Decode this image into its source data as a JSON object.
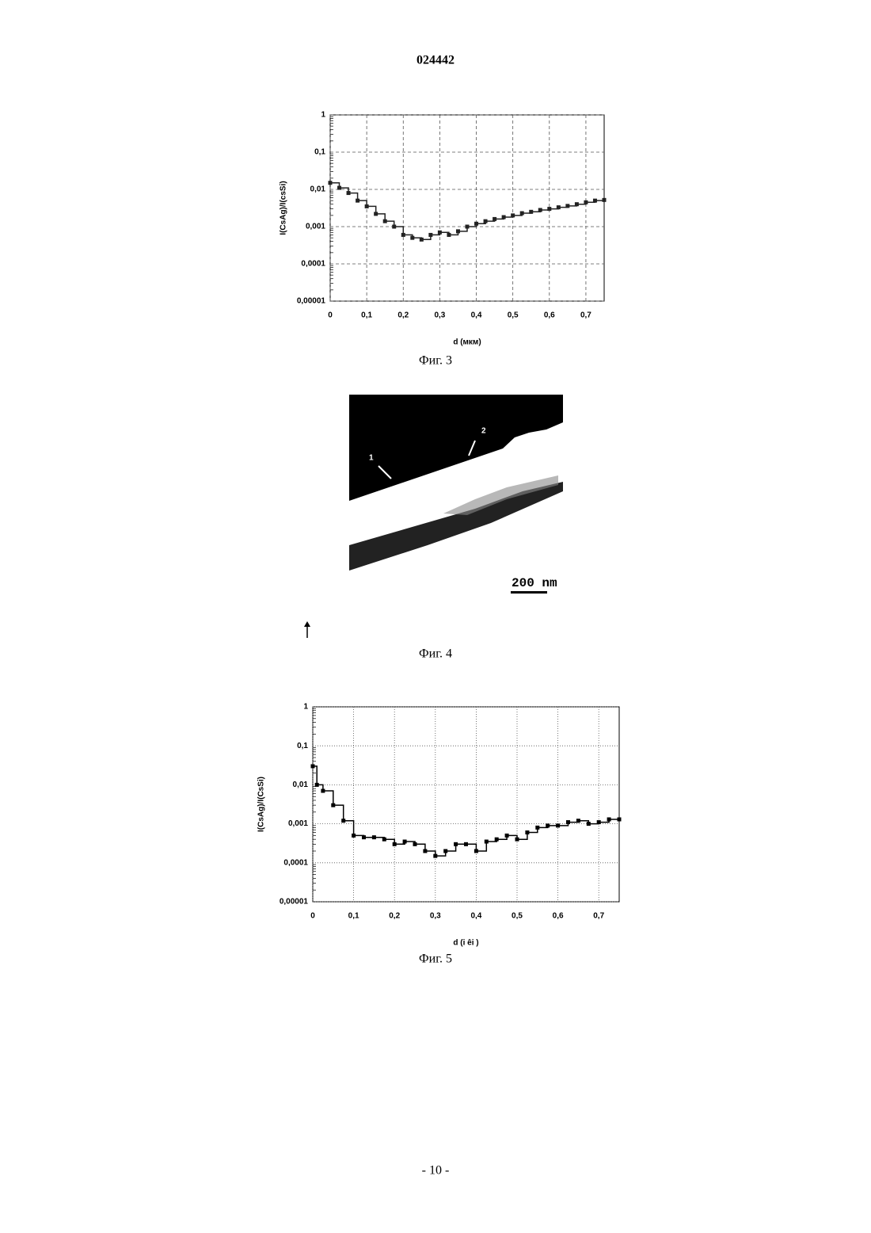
{
  "header": {
    "title": "024442"
  },
  "chart_data": [
    {
      "type": "line",
      "caption": "Фиг. 3",
      "x_label": "d (мкм)",
      "y_label": "I(CsAg)/I(csSi)",
      "log_y": true,
      "grid": true,
      "grid_dash": "4 3",
      "color": "#222222",
      "xlim": [
        0,
        0.75
      ],
      "ylim": [
        1e-05,
        1
      ],
      "xticks": [
        0,
        {
          "value": 0.1,
          "label": "0,1"
        },
        {
          "value": 0.2,
          "label": "0,2"
        },
        {
          "value": 0.3,
          "label": "0,3"
        },
        {
          "value": 0.4,
          "label": "0,4"
        },
        {
          "value": 0.5,
          "label": "0,5"
        },
        {
          "value": 0.6,
          "label": "0,6"
        },
        {
          "value": 0.7,
          "label": "0,7"
        }
      ],
      "yticks": [
        {
          "value": 1e-05,
          "label": "0,00001"
        },
        {
          "value": 0.0001,
          "label": "0,0001"
        },
        {
          "value": 0.001,
          "label": "0,001"
        },
        {
          "value": 0.01,
          "label": "0,01"
        },
        {
          "value": 0.1,
          "label": "0,1"
        },
        1
      ],
      "x": [
        0,
        0.025,
        0.05,
        0.075,
        0.1,
        0.125,
        0.15,
        0.175,
        0.2,
        0.225,
        0.25,
        0.275,
        0.3,
        0.325,
        0.35,
        0.375,
        0.4,
        0.425,
        0.45,
        0.475,
        0.5,
        0.525,
        0.55,
        0.575,
        0.6,
        0.625,
        0.65,
        0.675,
        0.7,
        0.725,
        0.75
      ],
      "values": [
        0.015,
        0.011,
        0.008,
        0.005,
        0.0035,
        0.0022,
        0.0014,
        0.001,
        0.0006,
        0.0005,
        0.00045,
        0.0006,
        0.0007,
        0.0006,
        0.00075,
        0.001,
        0.0012,
        0.0014,
        0.0016,
        0.0018,
        0.002,
        0.0023,
        0.0025,
        0.0028,
        0.003,
        0.0033,
        0.0036,
        0.004,
        0.0045,
        0.005,
        0.0052
      ]
    },
    {
      "type": "line",
      "caption": "Фиг. 5",
      "x_label": "d (i êi )",
      "y_label": "I(CsAg)/I(CsSi)",
      "log_y": true,
      "grid": true,
      "grid_dash": "1 2",
      "color": "#000000",
      "xlim": [
        0,
        0.75
      ],
      "ylim": [
        1e-05,
        1
      ],
      "xticks": [
        0,
        {
          "value": 0.1,
          "label": "0,1"
        },
        {
          "value": 0.2,
          "label": "0,2"
        },
        {
          "value": 0.3,
          "label": "0,3"
        },
        {
          "value": 0.4,
          "label": "0,4"
        },
        {
          "value": 0.5,
          "label": "0,5"
        },
        {
          "value": 0.6,
          "label": "0,6"
        },
        {
          "value": 0.7,
          "label": "0,7"
        }
      ],
      "yticks": [
        {
          "value": 1e-05,
          "label": "0,00001"
        },
        {
          "value": 0.0001,
          "label": "0,0001"
        },
        {
          "value": 0.001,
          "label": "0,001"
        },
        {
          "value": 0.01,
          "label": "0,01"
        },
        {
          "value": 0.1,
          "label": "0,1"
        },
        1
      ],
      "x": [
        0,
        0.01,
        0.025,
        0.05,
        0.075,
        0.1,
        0.125,
        0.15,
        0.175,
        0.2,
        0.225,
        0.25,
        0.275,
        0.3,
        0.325,
        0.35,
        0.375,
        0.4,
        0.425,
        0.45,
        0.475,
        0.5,
        0.525,
        0.55,
        0.575,
        0.6,
        0.625,
        0.65,
        0.675,
        0.7,
        0.725,
        0.75
      ],
      "values": [
        0.03,
        0.01,
        0.007,
        0.003,
        0.0012,
        0.0005,
        0.00045,
        0.00045,
        0.0004,
        0.0003,
        0.00035,
        0.0003,
        0.0002,
        0.00015,
        0.0002,
        0.0003,
        0.0003,
        0.0002,
        0.00035,
        0.0004,
        0.0005,
        0.0004,
        0.0006,
        0.0008,
        0.0009,
        0.0009,
        0.0011,
        0.0012,
        0.001,
        0.0011,
        0.0013,
        0.0013
      ]
    }
  ],
  "figure_4": {
    "caption": "Фиг. 4",
    "label_1": "1",
    "label_2": "2",
    "scale_bar": "200 nm"
  },
  "footer": {
    "page": "- 10 -"
  }
}
